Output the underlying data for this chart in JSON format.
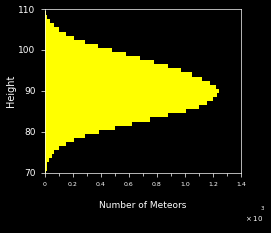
{
  "bg_color": "#000000",
  "bar_color": "#ffff00",
  "text_color": "#ffffff",
  "ylabel": "Height",
  "xlabel": "Number of Meteors",
  "ylim": [
    70,
    110
  ],
  "xlim": [
    0,
    1400
  ],
  "yticks": [
    70,
    80,
    90,
    100,
    110
  ],
  "xticks": [
    0,
    200,
    400,
    600,
    800,
    1000,
    1200,
    1400
  ],
  "xtick_labels": [
    "0",
    "0.2",
    "0.4",
    "0.6",
    "0.8",
    "1.0",
    "1.2",
    "1.4"
  ],
  "heights": [
    70,
    71,
    72,
    73,
    74,
    75,
    76,
    77,
    78,
    79,
    80,
    81,
    82,
    83,
    84,
    85,
    86,
    87,
    88,
    89,
    90,
    91,
    92,
    93,
    94,
    95,
    96,
    97,
    98,
    99,
    100,
    101,
    102,
    103,
    104,
    105,
    106,
    107,
    108,
    109
  ],
  "counts": [
    10,
    15,
    20,
    30,
    50,
    70,
    100,
    150,
    210,
    290,
    390,
    500,
    620,
    750,
    880,
    1010,
    1100,
    1160,
    1200,
    1230,
    1240,
    1220,
    1180,
    1120,
    1050,
    970,
    880,
    780,
    680,
    580,
    480,
    380,
    290,
    210,
    150,
    100,
    65,
    40,
    20,
    8
  ],
  "bar_height": 1.0,
  "figsize": [
    2.71,
    2.33
  ],
  "dpi": 100
}
